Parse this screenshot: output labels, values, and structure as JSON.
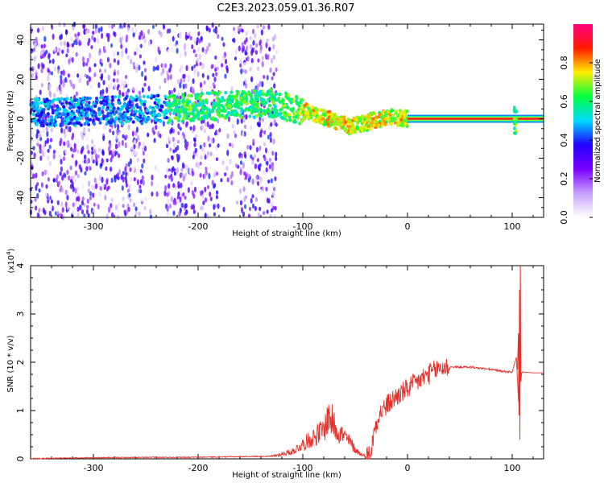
{
  "title": "C2E3.2023.059.01.36.R07",
  "chart_data": [
    {
      "type": "heatmap",
      "xlabel": "Height of straight line (km)",
      "ylabel": "Frequency (Hz)",
      "xlim": [
        -360,
        130
      ],
      "ylim": [
        -50,
        48
      ],
      "x_ticks": [
        -300,
        -200,
        -100,
        0,
        100
      ],
      "y_ticks": [
        -40,
        -20,
        0,
        20,
        40
      ],
      "x_tick_labels": [
        "-300",
        "-200",
        "-100",
        "0",
        "100"
      ],
      "y_tick_labels": [
        "-40",
        "-20",
        "0",
        "20",
        "40"
      ],
      "colorbar": {
        "label": "Normalized spectral amplitude",
        "range": [
          0.0,
          1.0
        ],
        "ticks": [
          0.0,
          0.2,
          0.4,
          0.6,
          0.8
        ],
        "tick_labels": [
          "0.0",
          "0.2",
          "0.4",
          "0.6",
          "0.8"
        ],
        "colormap": [
          "#ffffff",
          "#c8a0ff",
          "#7a00ff",
          "#2200ff",
          "#00d8ff",
          "#00ff40",
          "#ffee00",
          "#ff1a00",
          "#ff0080"
        ]
      },
      "features": {
        "noise_band_x": [
          -360,
          -125
        ],
        "ridge": [
          [
            -360,
            3
          ],
          [
            -230,
            5
          ],
          [
            -130,
            8
          ],
          [
            -100,
            4
          ],
          [
            -80,
            1
          ],
          [
            -55,
            -4
          ],
          [
            -40,
            -2
          ],
          [
            -20,
            1
          ],
          [
            0,
            0
          ]
        ],
        "carrier_x": [
          0,
          130
        ],
        "carrier_freq": 0,
        "spike_x": 103
      }
    },
    {
      "type": "line",
      "xlabel": "Height of straight line (km)",
      "ylabel": "SNR (10 * v/v)",
      "y_multiplier_label": "(x10",
      "y_multiplier_exp": "4",
      "xlim": [
        -360,
        130
      ],
      "ylim": [
        0,
        4
      ],
      "x_ticks": [
        -300,
        -200,
        -100,
        0,
        100
      ],
      "y_ticks": [
        0,
        1,
        2,
        3,
        4
      ],
      "x_tick_labels": [
        "-300",
        "-200",
        "-100",
        "0",
        "100"
      ],
      "y_tick_labels": [
        "0",
        "1",
        "2",
        "3",
        "4"
      ],
      "color": "#e8302a",
      "series": [
        {
          "x": [
            -360,
            -300,
            -200,
            -130,
            -110,
            -100,
            -90,
            -80,
            -75,
            -70,
            -65,
            -60,
            -55,
            -50,
            -45,
            -40,
            -35,
            -32,
            -28,
            -20,
            -10,
            0,
            10,
            20,
            30,
            40,
            60,
            80,
            95,
            100,
            104,
            106,
            107,
            108,
            110,
            120,
            130
          ],
          "values": [
            0.0,
            0.02,
            0.03,
            0.05,
            0.15,
            0.3,
            0.45,
            0.6,
            0.9,
            0.7,
            0.55,
            0.45,
            0.35,
            0.2,
            0.1,
            0.05,
            0.1,
            0.55,
            0.9,
            1.1,
            1.3,
            1.45,
            1.6,
            1.75,
            1.88,
            1.9,
            1.9,
            1.85,
            1.8,
            1.8,
            2.1,
            1.2,
            2.8,
            1.75,
            1.8,
            1.78,
            1.78
          ]
        }
      ]
    }
  ]
}
